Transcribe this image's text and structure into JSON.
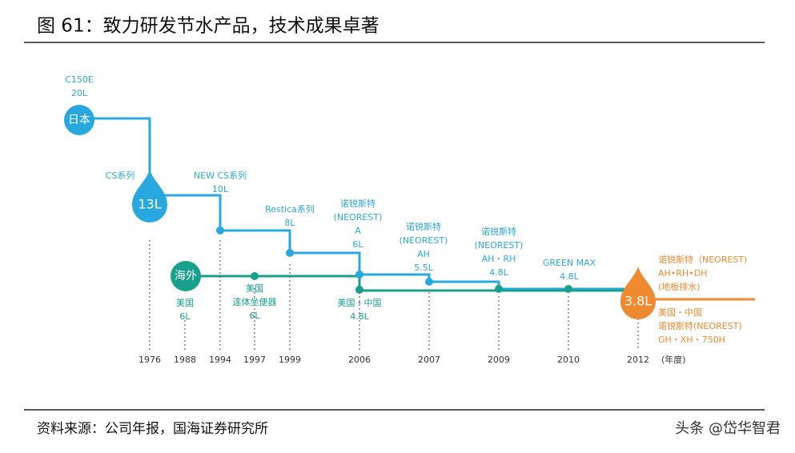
{
  "header": {
    "title": "图 61：致力研发节水产品，技术成果卓著"
  },
  "timeline": {
    "badges": {
      "japan": "日本",
      "overseas": "海外"
    },
    "drops": [
      "13L",
      "3.8L"
    ],
    "notes": [
      [
        "C150E",
        "20L"
      ],
      [
        "CS系列"
      ],
      [
        "NEW CS系列",
        "10L"
      ],
      [
        "Restica系列",
        "8L"
      ],
      [
        "诺锐斯特",
        "(NEOREST)",
        "A",
        "6L"
      ],
      [
        "诺锐斯特",
        "(NEOREST)",
        "AH",
        "5.5L"
      ],
      [
        "诺锐斯特",
        "(NEOREST)",
        "AH・RH",
        "4.8L"
      ],
      [
        "GREEN MAX",
        "4.8L"
      ],
      [
        "诺锐斯特（NEOREST)",
        "AH•RH•DH",
        "(地板排水)"
      ],
      [
        "美国・中国",
        "诺锐斯特(NEOREST)",
        "GH・XH・750H"
      ],
      [
        "美国",
        "6L"
      ],
      [
        "美国",
        "连体坐便器",
        "6L"
      ],
      [
        "美国・中国",
        "4.8L"
      ]
    ],
    "years": [
      "1976",
      "1988",
      "1994",
      "1997",
      "1999",
      "2006",
      "2007",
      "2009",
      "2010",
      "2012"
    ],
    "year_unit": "(年度)"
  },
  "footer": {
    "source": "资料来源：公司年报，国海证券研究所",
    "watermark": "头条 @岱华智君"
  }
}
